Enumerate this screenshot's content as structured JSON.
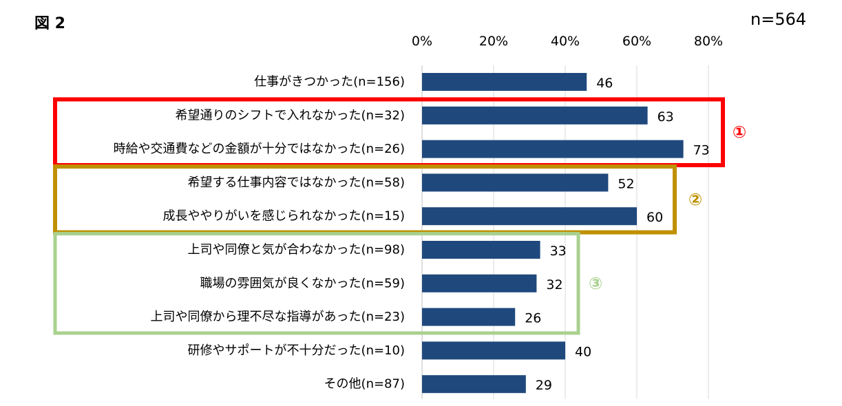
{
  "figure_label": "図 2",
  "sample_size": "n=564",
  "chart_data": {
    "type": "bar",
    "orientation": "horizontal",
    "title": "",
    "xlabel": "",
    "ylabel": "",
    "xlim": [
      0,
      80
    ],
    "ticks": [
      0,
      20,
      40,
      60,
      80
    ],
    "tick_suffix": "%",
    "grid": true,
    "categories": [
      "仕事がきつかった(n=156)",
      "希望通りのシフトで入れなかった(n=32)",
      "時給や交通費などの金額が十分ではなかった(n=26)",
      "希望する仕事内容ではなかった(n=58)",
      "成長ややりがいを感じられなかった(n=15)",
      "上司や同僚と気が合わなかった(n=98)",
      "職場の雰囲気が良くなかった(n=59)",
      "上司や同僚から理不尽な指導があった(n=23)",
      "研修やサポートが不十分だった(n=10)",
      "その他(n=87)"
    ],
    "values": [
      46,
      63,
      73,
      52,
      60,
      33,
      32,
      26,
      40,
      29
    ],
    "bar_color": "#1f497d",
    "groups": [
      {
        "marker": "①",
        "color": "#ff0000",
        "start": 1,
        "end": 2
      },
      {
        "marker": "②",
        "color": "#bf9000",
        "start": 3,
        "end": 4
      },
      {
        "marker": "③",
        "color": "#a9d18e",
        "start": 5,
        "end": 7
      }
    ]
  }
}
